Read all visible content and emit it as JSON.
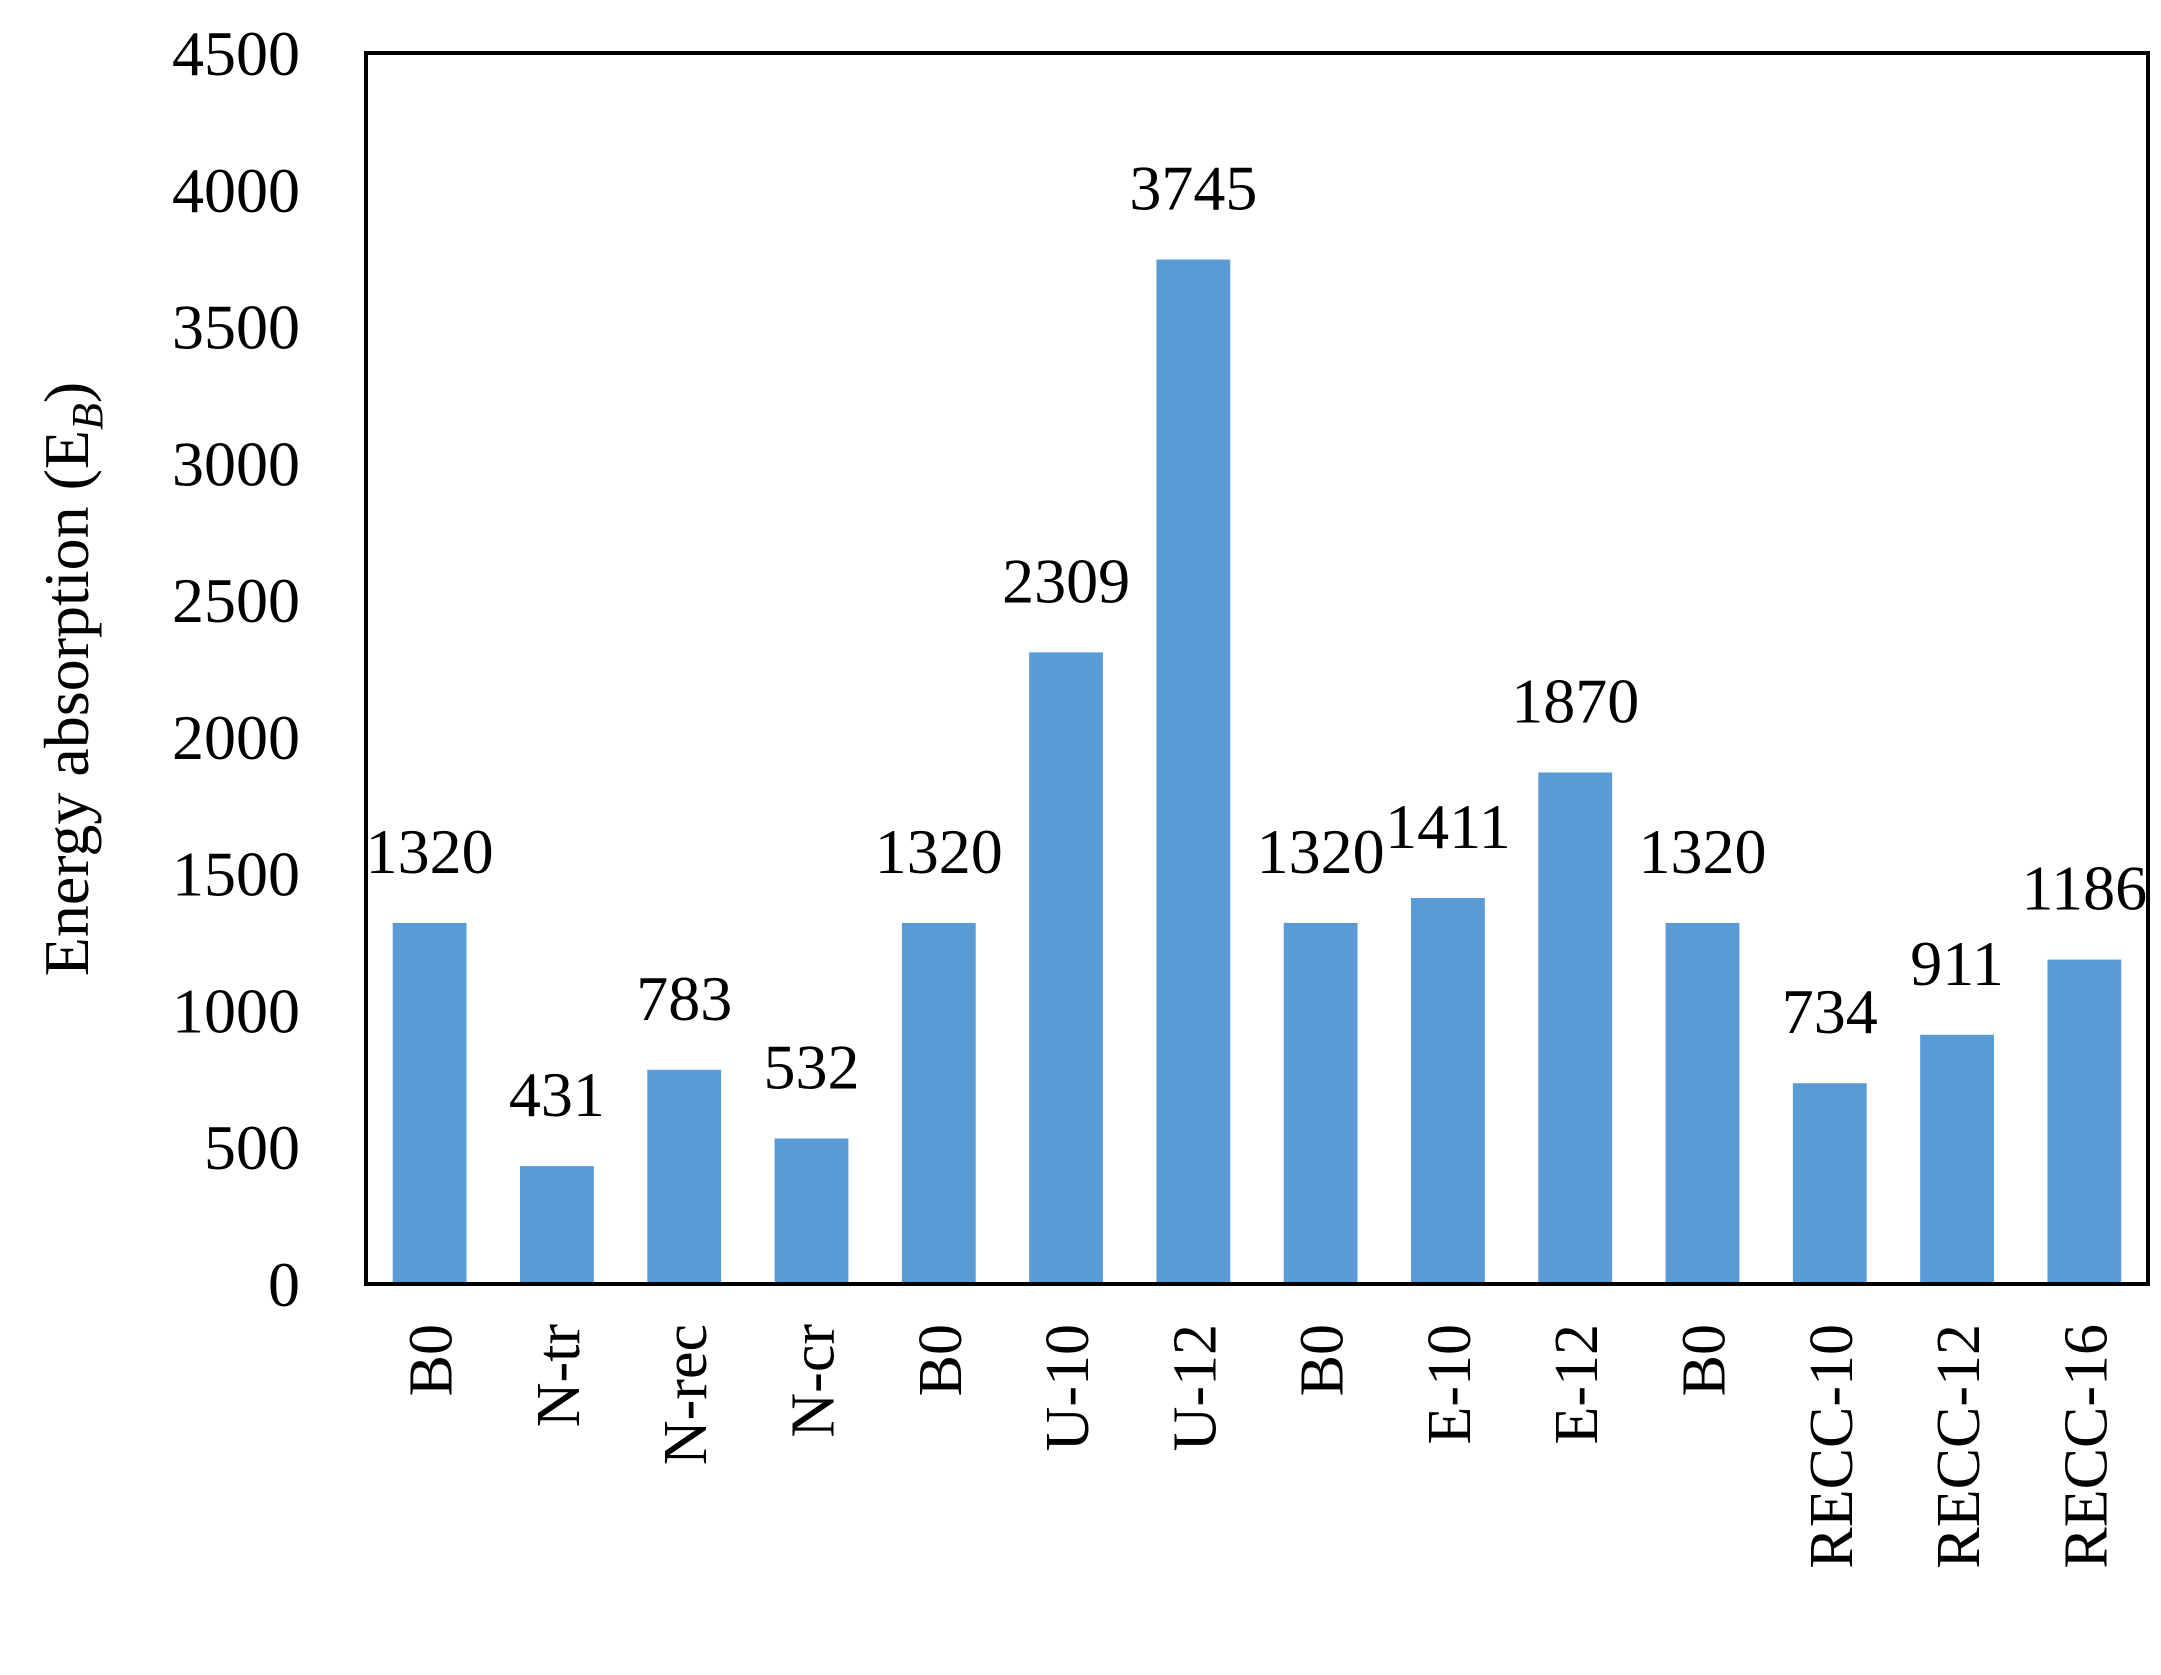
{
  "chart_data": {
    "type": "bar",
    "title": "",
    "xlabel": "",
    "ylabel": "Energy absorption (E",
    "ylabel_subscript": "B",
    "ylabel_suffix": ")",
    "ylim": [
      0,
      4500
    ],
    "yticks": [
      0,
      500,
      1000,
      1500,
      2000,
      2500,
      3000,
      3500,
      4000,
      4500
    ],
    "grid": false,
    "legend": "none",
    "categories": [
      "B0",
      "N-tr",
      "N-rec",
      "N-cr",
      "B0",
      "U-10",
      "U-12",
      "B0",
      "E-10",
      "E-12",
      "B0",
      "RECC-10",
      "RECC-12",
      "RECC-16"
    ],
    "values": [
      1320,
      431,
      783,
      532,
      1320,
      2309,
      3745,
      1320,
      1411,
      1870,
      1320,
      734,
      911,
      1186
    ],
    "data_labels": [
      "1320",
      "431",
      "783",
      "532",
      "1320",
      "2309",
      "3745",
      "1320",
      "1411",
      "1870",
      "1320",
      "734",
      "911",
      "1186"
    ],
    "bar_color": "#5b9bd5"
  }
}
